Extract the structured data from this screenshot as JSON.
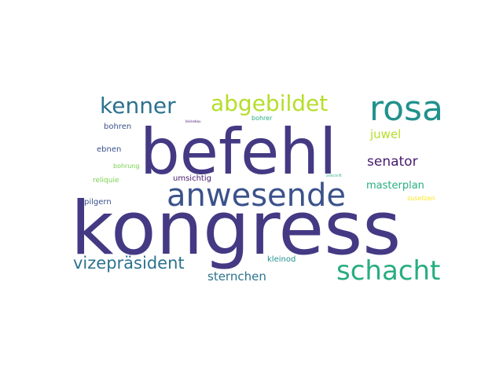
{
  "palette": {
    "dark_purple": "#443983",
    "indigo": "#414487",
    "blue_violet": "#3b528b",
    "teal": "#2c728e",
    "teal_green": "#21918c",
    "green": "#27ad81",
    "yellow_green": "#b5de2b",
    "lime": "#7ad151",
    "yellow": "#fde725",
    "deep_purple": "#481a6c"
  },
  "words": {
    "kongress": "kongress",
    "befehl": "befehl",
    "anwesende": "anwesende",
    "rosa": "rosa",
    "schacht": "schacht",
    "abgebildet": "abgebildet",
    "kenner": "kenner",
    "vizepraesident": "vizepräsident",
    "senator": "senator",
    "sternchen": "sternchen",
    "masterplan": "masterplan",
    "juwel": "juwel",
    "umsichtig": "umsichtig",
    "kleinod": "kleinod",
    "pilgern": "pilgern",
    "bohren": "bohren",
    "ebnen": "ebnen",
    "reliquie": "reliquie",
    "bohrung": "bohrung",
    "bohrer": "bohrer",
    "zusetzen": "zusetzen",
    "kleinebau": "kleinebau",
    "zeitschrift": "zeitschrift"
  }
}
